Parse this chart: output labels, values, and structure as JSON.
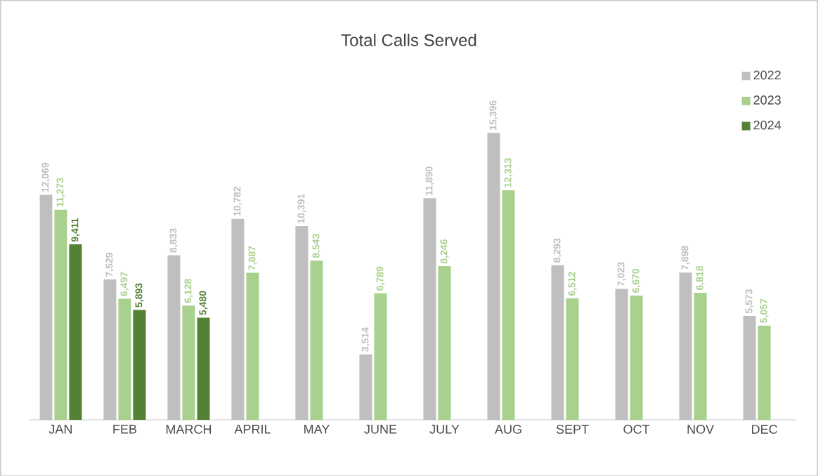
{
  "chart_data": {
    "type": "bar",
    "title": "Total Calls Served",
    "categories": [
      "JAN",
      "FEB",
      "MARCH",
      "APRIL",
      "MAY",
      "JUNE",
      "JULY",
      "AUG",
      "SEPT",
      "OCT",
      "NOV",
      "DEC"
    ],
    "series": [
      {
        "name": "2022",
        "color": "#bfbfbf",
        "values": [
          12069,
          7529,
          8833,
          10782,
          10391,
          3514,
          11890,
          15396,
          8293,
          7023,
          7898,
          5573
        ],
        "value_labels": [
          "12,069",
          "7,529",
          "8,833",
          "10,782",
          "10,391",
          "3,514",
          "11,890",
          "15,396",
          "8,293",
          "7,023",
          "7,898",
          "5,573"
        ]
      },
      {
        "name": "2023",
        "color": "#a9d18e",
        "values": [
          11273,
          6497,
          6128,
          7887,
          8543,
          6789,
          8246,
          12313,
          6512,
          6670,
          6818,
          5057
        ],
        "value_labels": [
          "11,273",
          "6,497",
          "6,128",
          "7,887",
          "8,543",
          "6,789",
          "8,246",
          "12,313",
          "6,512",
          "6,670",
          "6,818",
          "5,057"
        ]
      },
      {
        "name": "2024",
        "color": "#548235",
        "values": [
          9411,
          5893,
          5480,
          null,
          null,
          null,
          null,
          null,
          null,
          null,
          null,
          null
        ],
        "value_labels": [
          "9,411",
          "5,893",
          "5,480",
          null,
          null,
          null,
          null,
          null,
          null,
          null,
          null,
          null
        ]
      }
    ],
    "legend": "top right"
  }
}
